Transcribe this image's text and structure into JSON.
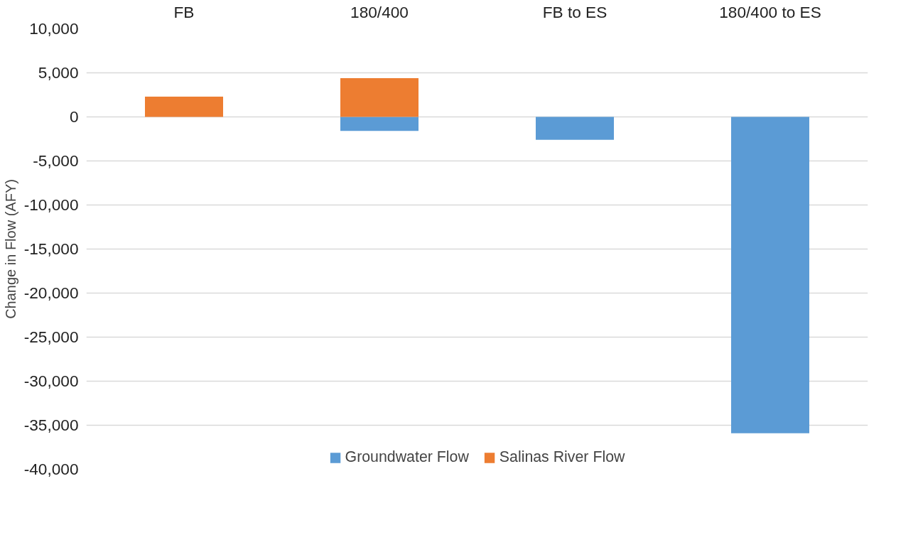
{
  "chart_data": {
    "type": "bar",
    "stacked": true,
    "ylabel": "Change in Flow (AFY)",
    "categories": [
      "FB",
      "180/400",
      "FB to ES",
      "180/400 to ES"
    ],
    "series": [
      {
        "name": "Groundwater Flow",
        "color": "#5b9bd5",
        "values": [
          null,
          -1600,
          -2600,
          -35900
        ]
      },
      {
        "name": "Salinas River Flow",
        "color": "#ed7d31",
        "values": [
          2300,
          4400,
          null,
          null
        ]
      }
    ],
    "ylim": [
      -40000,
      10000
    ],
    "yticks": [
      {
        "value": -40000,
        "label": "-40,000"
      },
      {
        "value": -35000,
        "label": "-35,000"
      },
      {
        "value": -30000,
        "label": "-30,000"
      },
      {
        "value": -25000,
        "label": "-25,000"
      },
      {
        "value": -20000,
        "label": "-20,000"
      },
      {
        "value": -15000,
        "label": "-15,000"
      },
      {
        "value": -10000,
        "label": "-10,000"
      },
      {
        "value": -5000,
        "label": "-5,000"
      },
      0,
      {
        "value": 5000,
        "label": "5,000"
      },
      {
        "value": 10000,
        "label": "10,000"
      }
    ],
    "grid": "y",
    "legend": "bottom"
  }
}
